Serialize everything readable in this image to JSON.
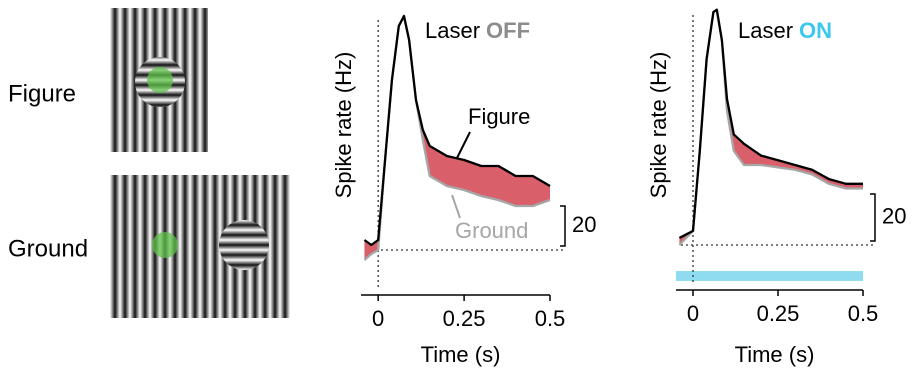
{
  "stimuli": [
    {
      "label": "Figure"
    },
    {
      "label": "Ground"
    }
  ],
  "chart_data": [
    {
      "type": "line",
      "title": "Laser",
      "condition": "OFF",
      "condition_color": "#8c8c8c",
      "y_label": "Spike rate (Hz)",
      "x_label": "Time (s)",
      "xlim": [
        -0.05,
        0.5
      ],
      "xticks": [
        0,
        0.25,
        0.5
      ],
      "ylim": [
        -20,
        120
      ],
      "baseline": 0,
      "stimulus_onset": 0,
      "scale_bar": 20,
      "fill_color": "#d9606a",
      "x": [
        -0.04,
        -0.02,
        0,
        0.02,
        0.04,
        0.06,
        0.075,
        0.09,
        0.11,
        0.13,
        0.15,
        0.2,
        0.25,
        0.3,
        0.35,
        0.4,
        0.45,
        0.5
      ],
      "series": [
        {
          "name": "Figure",
          "color": "#000000",
          "values": [
            5,
            2.5,
            5,
            45,
            85,
            112,
            117,
            105,
            75,
            60,
            52,
            47,
            45,
            42,
            42,
            37,
            37,
            32
          ]
        },
        {
          "name": "Ground",
          "color": "#a6a6a6",
          "values": [
            -5,
            -2,
            0,
            45,
            85,
            112,
            117,
            105,
            75,
            55,
            37,
            32,
            30,
            27,
            25,
            22,
            22,
            25
          ]
        }
      ]
    },
    {
      "type": "line",
      "title": "Laser",
      "condition": "ON",
      "condition_color": "#3cc8ec",
      "y_label": "Spike rate (Hz)",
      "x_label": "Time (s)",
      "xlim": [
        -0.05,
        0.5
      ],
      "xticks": [
        0,
        0.25,
        0.5
      ],
      "ylim": [
        -17,
        102
      ],
      "baseline": 0,
      "stimulus_onset": 0,
      "scale_bar": 20,
      "fill_color": "#d9606a",
      "laser_period": [
        -0.05,
        0.5
      ],
      "laser_color": "#8fdcf0",
      "x": [
        -0.04,
        0,
        0.02,
        0.04,
        0.06,
        0.07,
        0.085,
        0.1,
        0.12,
        0.15,
        0.2,
        0.25,
        0.3,
        0.35,
        0.4,
        0.45,
        0.5
      ],
      "series": [
        {
          "color": "#000000",
          "values": [
            3,
            6,
            40,
            79,
            99,
            100,
            87,
            62,
            47,
            43,
            38,
            36,
            34,
            32,
            28,
            26,
            26
          ]
        },
        {
          "color": "#a6a6a6",
          "values": [
            0,
            6,
            40,
            79,
            99,
            100,
            87,
            57,
            40,
            34,
            34,
            33,
            32,
            30,
            26,
            24,
            24
          ]
        }
      ]
    }
  ]
}
